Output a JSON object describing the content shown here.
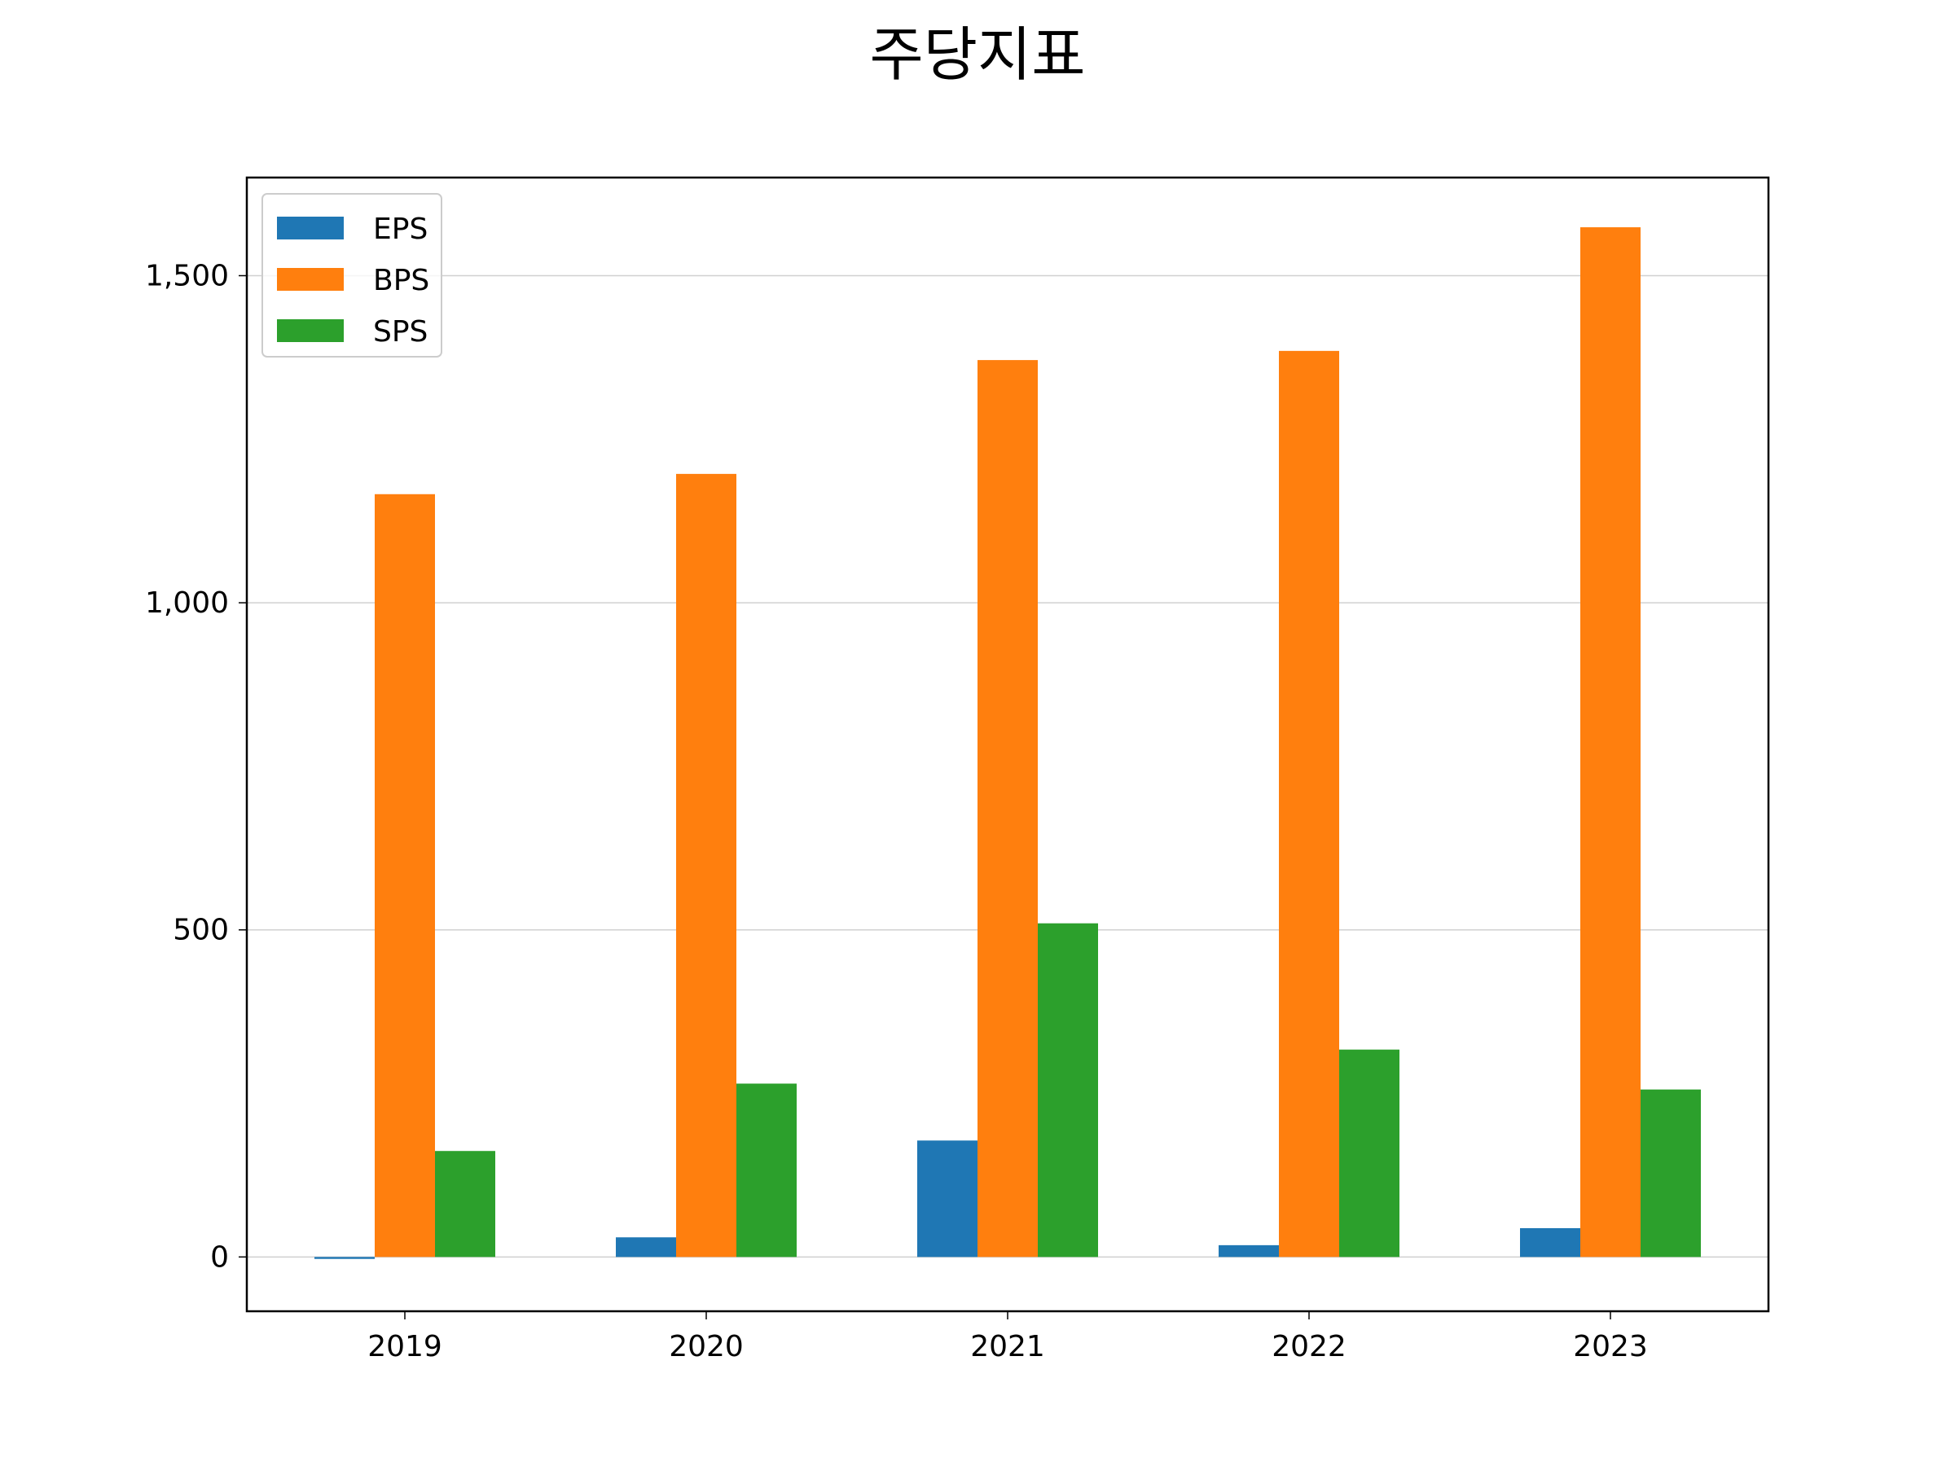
{
  "chart_data": {
    "type": "bar",
    "title": "주당지표",
    "xlabel": "",
    "ylabel": "",
    "categories": [
      "2019",
      "2020",
      "2021",
      "2022",
      "2023"
    ],
    "series": [
      {
        "name": "EPS",
        "color": "#1f77b4",
        "values": [
          -3,
          30,
          178,
          18,
          44
        ]
      },
      {
        "name": "BPS",
        "color": "#ff7f0e",
        "values": [
          1166,
          1197,
          1371,
          1385,
          1574
        ]
      },
      {
        "name": "SPS",
        "color": "#2ca02c",
        "values": [
          162,
          265,
          510,
          317,
          256
        ]
      }
    ],
    "ylim": [
      -83,
      1650
    ],
    "yticks": [
      0,
      500,
      1000,
      1500
    ],
    "ytick_labels": [
      "0",
      "500",
      "1,000",
      "1,500"
    ],
    "grid": "y",
    "legend_position": "top-left"
  }
}
